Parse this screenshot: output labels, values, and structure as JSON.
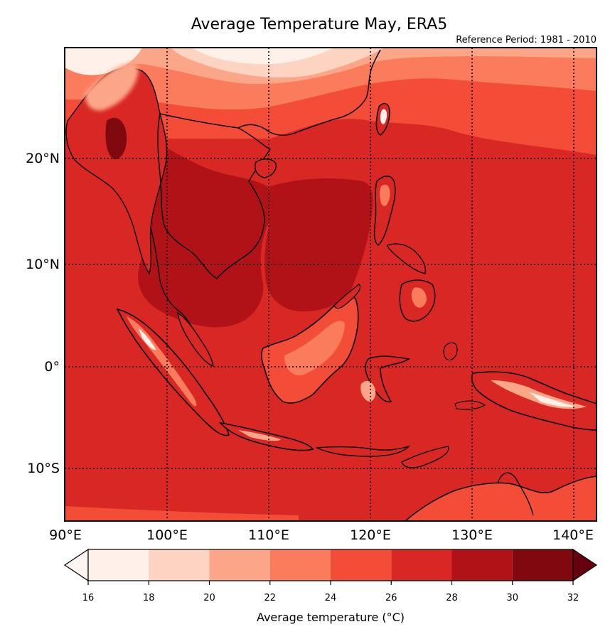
{
  "title": "Average Temperature May, ERA5",
  "subtitle": "Reference Period: 1981 - 2010",
  "map": {
    "lon_range": [
      90,
      142.5
    ],
    "lat_range": [
      -15,
      30
    ],
    "meridians": [
      90,
      100,
      110,
      120,
      130,
      140
    ],
    "parallels": [
      -10,
      0,
      10,
      20
    ],
    "lon_labels": [
      "90°E",
      "100°E",
      "110°E",
      "120°E",
      "130°E",
      "140°E"
    ],
    "lat_labels": [
      "10°S",
      "0°",
      "10°N",
      "20°N"
    ],
    "grid_style": "dotted",
    "ocean_dominant_bin": "26-28"
  },
  "colorbar": {
    "label": "Average temperature (°C)",
    "ticks": [
      "16",
      "18",
      "20",
      "22",
      "24",
      "26",
      "28",
      "30",
      "32"
    ],
    "boundaries": [
      16,
      18,
      20,
      22,
      24,
      26,
      28,
      30,
      32
    ],
    "colors": [
      "#fff0e9",
      "#fdd4c2",
      "#fca689",
      "#fb7c5c",
      "#f44d37",
      "#d92723",
      "#b01217",
      "#800910"
    ],
    "under_color": "#fff5f0",
    "over_color": "#67000d",
    "extend": "both"
  }
}
